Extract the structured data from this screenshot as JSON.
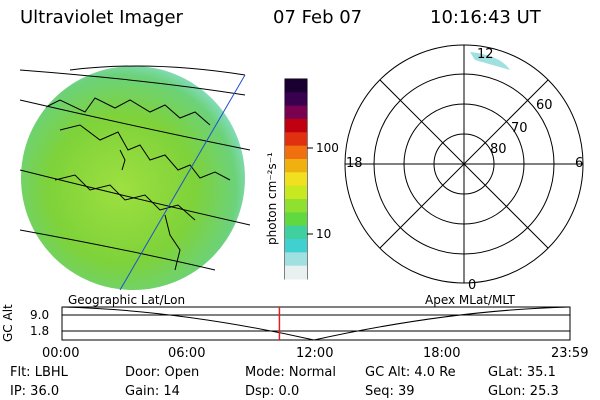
{
  "header": {
    "title": "Ultraviolet Imager",
    "date": "07 Feb 07",
    "time": "10:16:43 UT"
  },
  "colorbar": {
    "unit_label": "photon cm⁻²s⁻¹",
    "ticks": [
      "100",
      "10"
    ],
    "colors": [
      "#1a0030",
      "#3a0050",
      "#7a0050",
      "#c00010",
      "#e03010",
      "#f07010",
      "#f0b010",
      "#f0e020",
      "#c8e820",
      "#90e030",
      "#60d840",
      "#40d0a0",
      "#40d0d0",
      "#a0e0e0",
      "#e8f0f0"
    ]
  },
  "polar": {
    "mlt_labels": [
      "12",
      "18",
      "6",
      "0"
    ],
    "mlat_labels": [
      "60",
      "70",
      "80"
    ]
  },
  "timeline": {
    "left_caption": "Geographic Lat/Lon",
    "right_caption": "Apex MLat/MLT",
    "axis_label": "GC Alt",
    "y_ticks": [
      "9.0",
      "1.8"
    ],
    "x_ticks": [
      "00:00",
      "06:00",
      "12:00",
      "18:00",
      "23:59"
    ],
    "current_fraction": 0.428
  },
  "status": {
    "flt": "Flt: LBHL",
    "ip": "IP: 36.0",
    "door": "Door: Open",
    "gain": "Gain: 14",
    "mode": "Mode: Normal",
    "dsp": "Dsp:       0.0",
    "gcalt": "GC Alt: 4.0 Re",
    "seq": "Seq: 39",
    "glat": "GLat:   35.1",
    "glon": "GLon:   25.3"
  },
  "colors": {
    "globe_fill": "#7ed23a",
    "coast": "#000000",
    "meridian": "#2050d0",
    "marker": "#e02020"
  }
}
